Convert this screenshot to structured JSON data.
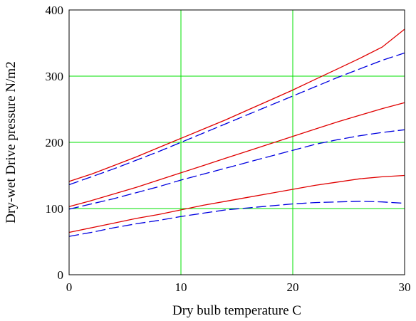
{
  "chart_data": {
    "type": "line",
    "title": "",
    "xlabel": "Dry bulb temperature C",
    "ylabel": "Dry-wet Drive pressure N/m2",
    "xlim": [
      0,
      30
    ],
    "ylim": [
      0,
      400
    ],
    "x_ticks": [
      "0",
      "10",
      "20",
      "30"
    ],
    "y_ticks": [
      "0",
      "100",
      "200",
      "300",
      "400"
    ],
    "grid": true,
    "grid_color": "#00e000",
    "legend": "none",
    "x": [
      0,
      2,
      4,
      6,
      8,
      10,
      12,
      14,
      16,
      18,
      20,
      22,
      24,
      26,
      28,
      30
    ],
    "series": [
      {
        "color": "#e00000",
        "style": "solid",
        "values": [
          141,
          152,
          165,
          178,
          192,
          206,
          220,
          234,
          249,
          264,
          279,
          295,
          311,
          327,
          344,
          371
        ]
      },
      {
        "color": "#0000e0",
        "style": "dashed",
        "values": [
          136,
          148,
          160,
          173,
          186,
          200,
          214,
          228,
          242,
          256,
          270,
          284,
          298,
          311,
          324,
          335
        ]
      },
      {
        "color": "#e00000",
        "style": "solid",
        "values": [
          103,
          112,
          122,
          132,
          143,
          154,
          165,
          176,
          187,
          198,
          209,
          220,
          231,
          241,
          251,
          260
        ]
      },
      {
        "color": "#0000e0",
        "style": "dashed",
        "values": [
          99,
          107,
          115,
          124,
          133,
          143,
          152,
          161,
          170,
          179,
          188,
          197,
          204,
          210,
          215,
          219
        ]
      },
      {
        "color": "#e00000",
        "style": "solid",
        "values": [
          64,
          71,
          78,
          85,
          91,
          98,
          105,
          111,
          117,
          123,
          129,
          135,
          140,
          145,
          148,
          150
        ]
      },
      {
        "color": "#0000e0",
        "style": "dashed",
        "values": [
          58,
          64,
          71,
          77,
          82,
          88,
          93,
          98,
          101,
          104,
          107,
          109,
          110,
          111,
          110,
          108
        ]
      }
    ]
  }
}
